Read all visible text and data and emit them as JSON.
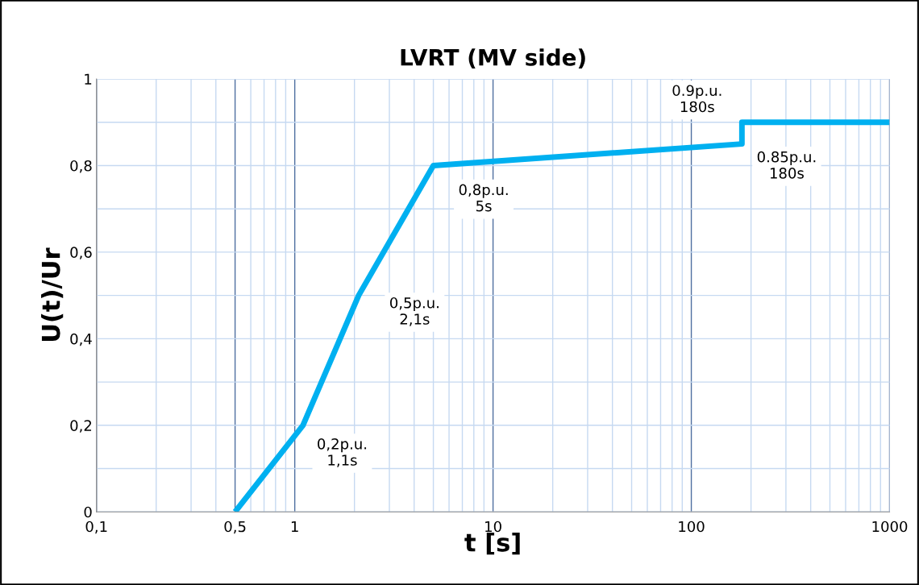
{
  "chart_data": {
    "type": "line",
    "title": "LVRT (MV side)",
    "xlabel": "t [s]",
    "ylabel": "U(t)/Ur",
    "log": "x",
    "grid": true,
    "marker": "none",
    "line_style": "solid",
    "xlim": [
      0.1,
      1000
    ],
    "xticks": [
      {
        "value": 0.1,
        "label": "0,1"
      },
      {
        "value": 0.5,
        "label": "0,5"
      },
      1,
      10,
      100,
      1000
    ],
    "ylim": [
      0,
      1
    ],
    "yticks": [
      0,
      {
        "value": 0.1,
        "label": null
      },
      {
        "value": 0.2,
        "label": "0,2"
      },
      {
        "value": 0.3,
        "label": null
      },
      {
        "value": 0.4,
        "label": "0,4"
      },
      {
        "value": 0.5,
        "label": null
      },
      {
        "value": 0.6,
        "label": "0,6"
      },
      {
        "value": 0.7,
        "label": null
      },
      {
        "value": 0.8,
        "label": "0,8"
      },
      {
        "value": 0.9,
        "label": null
      },
      1
    ],
    "series": [
      {
        "color": "#00b0f0",
        "x": [
          0.5,
          1.1,
          2.1,
          5,
          180,
          180,
          1000
        ],
        "values": [
          0,
          0.2,
          0.5,
          0.8,
          0.85,
          0.9,
          0.9
        ]
      }
    ],
    "annotations": [
      {
        "text": "0,2p.u.\n1,1s",
        "x": 1.1,
        "y": 0.2
      },
      {
        "text": "0,5p.u.\n2,1s",
        "x": 2.1,
        "y": 0.5
      },
      {
        "text": "0,8p.u.\n5s",
        "x": 5,
        "y": 0.8
      },
      {
        "text": "0.85p.u.\n180s",
        "x": 180,
        "y": 0.85
      },
      {
        "text": "0.9p.u.\n180s",
        "x": 180,
        "y": 0.9
      }
    ]
  }
}
